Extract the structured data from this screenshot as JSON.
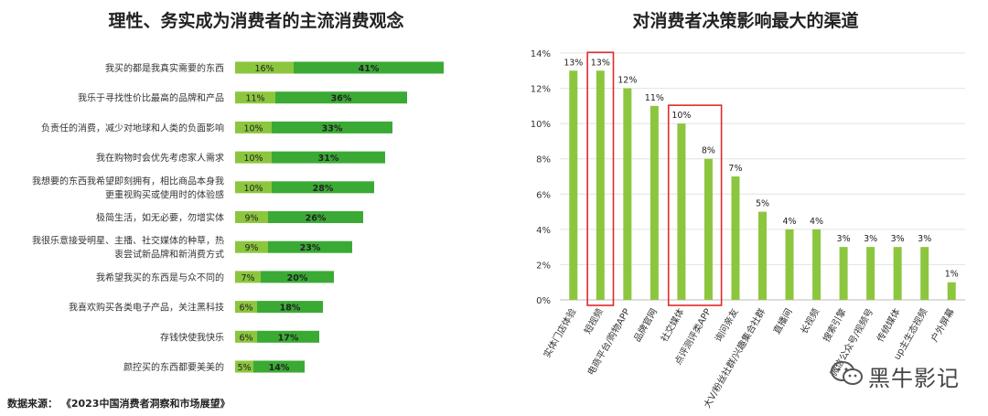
{
  "chart_data": [
    {
      "type": "bar",
      "orientation": "horizontal",
      "stacked": true,
      "title": "理性、务实成为消费者的主流消费观念",
      "categories": [
        [
          "我买的都是我真实需要的东西"
        ],
        [
          "我乐于寻找性价比最高的品牌和产品"
        ],
        [
          "负责任的消费，减少对地球和人类的负面影响"
        ],
        [
          "我在购物时会优先考虑家人需求"
        ],
        [
          "我想要的东西我希望即刻拥有，相比商品本身我",
          "更重视购买或使用时的体验感"
        ],
        [
          "极简生活，如无必要，勿增实体"
        ],
        [
          "我很乐意接受明星、主播、社交媒体的种草，热",
          "衷尝试新品牌和新消费方式"
        ],
        [
          "我希望我买的东西是与众不同的"
        ],
        [
          "我喜欢购买各类电子产品，关注黑科技"
        ],
        [
          "存钱快使我快乐"
        ],
        [
          "颜控买的东西都要美美的"
        ]
      ],
      "series": [
        {
          "values": [
            16,
            11,
            10,
            10,
            10,
            9,
            9,
            7,
            6,
            6,
            5
          ],
          "labels": [
            "16%",
            "11%",
            "10%",
            "10%",
            "10%",
            "9%",
            "9%",
            "7%",
            "6%",
            "6%",
            "5%"
          ],
          "color": "#8cc63f"
        },
        {
          "values": [
            41,
            36,
            33,
            31,
            28,
            26,
            23,
            20,
            18,
            17,
            14
          ],
          "labels": [
            "41%",
            "36%",
            "33%",
            "31%",
            "28%",
            "26%",
            "23%",
            "20%",
            "18%",
            "17%",
            "14%"
          ],
          "color": "#3aaa35"
        }
      ],
      "grid": false
    },
    {
      "type": "bar",
      "title": "对消费者决策影响最大的渠道",
      "categories": [
        "实体门店体验",
        "短视频",
        "电商平台/购物APP",
        "品牌官网",
        "社交媒体",
        "点评测评类APP",
        "询问亲友",
        "大V/粉丝社群/兴趣集合社群",
        "直播间",
        "长视频",
        "搜索引擎",
        "微信公众号/视频号",
        "传统媒体",
        "up主生态视频",
        "户外屏幕"
      ],
      "values": [
        13,
        13,
        12,
        11,
        10,
        8,
        7,
        5,
        4,
        4,
        3,
        3,
        3,
        3,
        1
      ],
      "labels": [
        "13%",
        "13%",
        "12%",
        "11%",
        "10%",
        "8%",
        "7%",
        "5%",
        "4%",
        "4%",
        "3%",
        "3%",
        "3%",
        "3%",
        "1%"
      ],
      "yticks": [
        "0%",
        "2%",
        "4%",
        "6%",
        "8%",
        "10%",
        "12%",
        "14%"
      ],
      "ylim": [
        0,
        14
      ],
      "color": "#8cc63f",
      "highlight_color": "#e02a2a",
      "highlight_groups": [
        [
          1
        ],
        [
          4,
          5
        ]
      ],
      "grid": true
    }
  ],
  "footer": {
    "source": "数据来源：  《2023中国消费者洞察和市场展望》"
  },
  "watermark": {
    "text": "黑牛影记",
    "icon": "wechat-icon"
  }
}
